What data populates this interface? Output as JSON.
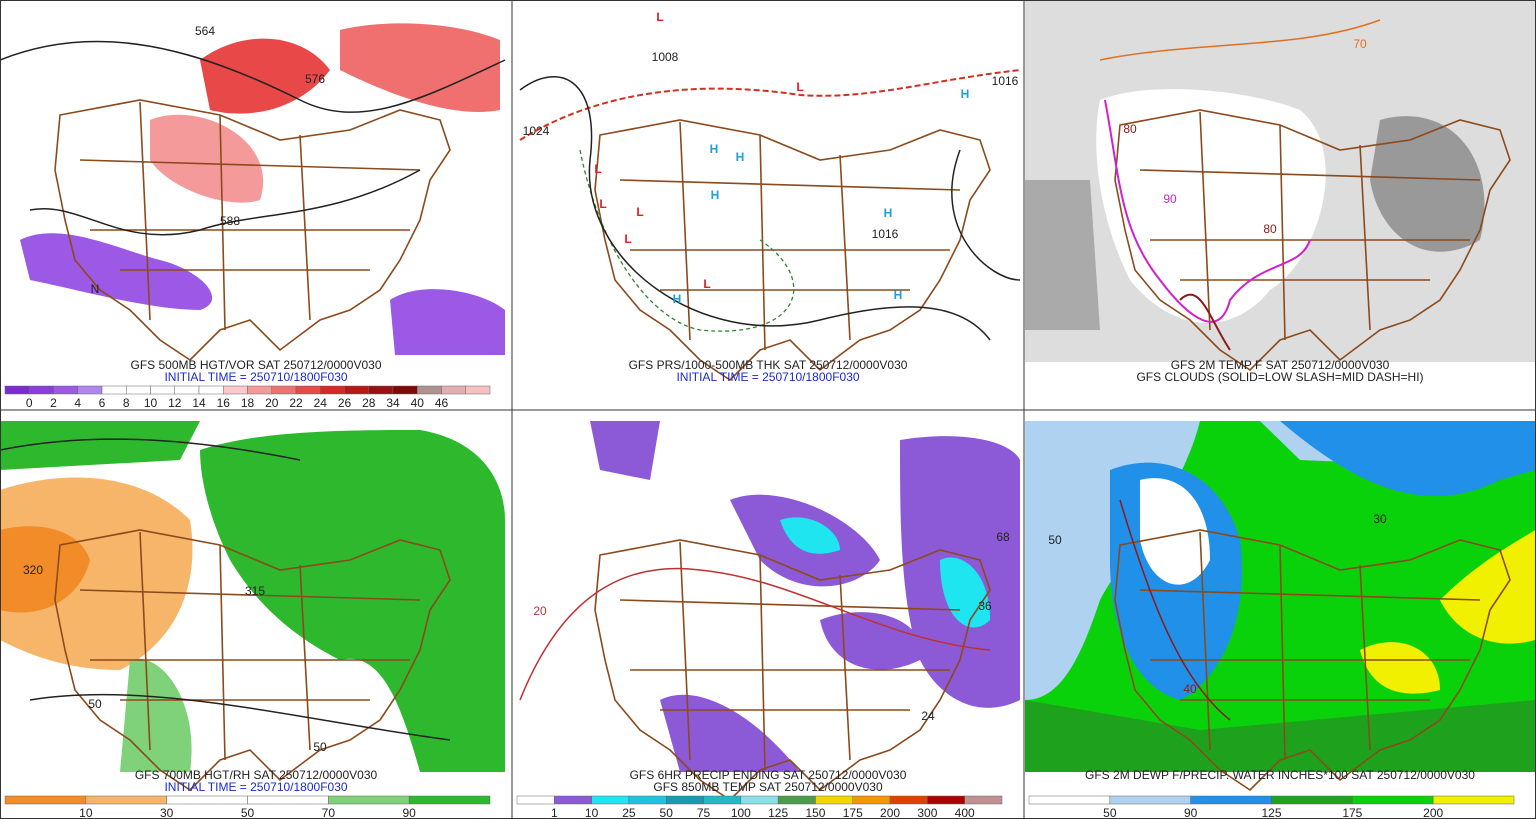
{
  "panels": [
    {
      "caption": [
        "GFS 500MB HGT/VOR SAT 250712/0000V030",
        "INITIAL TIME = 250710/1800F030"
      ],
      "colorbar": {
        "labels": [
          "0",
          "2",
          "4",
          "6",
          "8",
          "10",
          "12",
          "14",
          "16",
          "18",
          "20",
          "22",
          "24",
          "26",
          "28",
          "34",
          "40",
          "46"
        ],
        "colors": [
          "#7a2bd6",
          "#8a3ee0",
          "#9b59e6",
          "#b085ee",
          "#ffffff",
          "#ffffff",
          "#ffffff",
          "#ffffff",
          "#ffffff",
          "#fbc9c9",
          "#f59a9a",
          "#f07070",
          "#e84848",
          "#d92626",
          "#b81818",
          "#9a1010",
          "#800808",
          "#b09090",
          "#e0b0b0",
          "#f5c0c0"
        ]
      },
      "map_labels": [
        {
          "text": "564",
          "color": "#222"
        },
        {
          "text": "576",
          "color": "#222"
        },
        {
          "text": "588",
          "color": "#222"
        },
        {
          "text": "N",
          "color": "#222"
        }
      ]
    },
    {
      "caption": [
        "GFS PRS/1000-500MB THK SAT 250712/0000V030",
        "INITIAL TIME = 250710/1800F030"
      ],
      "map_labels": [
        {
          "text": "L",
          "color": "#e02020"
        },
        {
          "text": "L",
          "color": "#e02020"
        },
        {
          "text": "L",
          "color": "#e02020"
        },
        {
          "text": "L",
          "color": "#e02020"
        },
        {
          "text": "L",
          "color": "#e02020"
        },
        {
          "text": "L",
          "color": "#e02020"
        },
        {
          "text": "L",
          "color": "#e02020"
        },
        {
          "text": "H",
          "color": "#1ea0d8"
        },
        {
          "text": "H",
          "color": "#1ea0d8"
        },
        {
          "text": "H",
          "color": "#1ea0d8"
        },
        {
          "text": "H",
          "color": "#1ea0d8"
        },
        {
          "text": "H",
          "color": "#1ea0d8"
        },
        {
          "text": "H",
          "color": "#1ea0d8"
        },
        {
          "text": "H",
          "color": "#1ea0d8"
        },
        {
          "text": "1008",
          "color": "#222"
        },
        {
          "text": "1016",
          "color": "#222"
        },
        {
          "text": "1024",
          "color": "#222"
        },
        {
          "text": "1016",
          "color": "#222"
        }
      ]
    },
    {
      "caption": [
        "GFS 2M TEMP F SAT 250712/0000V030",
        "GFS CLOUDS (SOLID=LOW SLASH=MID DASH=HI)"
      ],
      "map_labels": [
        {
          "text": "80",
          "color": "#8b1a1a"
        },
        {
          "text": "80",
          "color": "#8b1a1a"
        },
        {
          "text": "70",
          "color": "#e07020"
        },
        {
          "text": "90",
          "color": "#d020d0"
        }
      ]
    },
    {
      "caption": [
        "GFS 700MB HGT/RH SAT 250712/0000V030",
        "INITIAL TIME = 250710/1800F030"
      ],
      "colorbar": {
        "labels": [
          "10",
          "30",
          "50",
          "70",
          "90"
        ],
        "colors": [
          "#f28c28",
          "#f7b56a",
          "#ffffff",
          "#ffffff",
          "#7fd17a",
          "#2eb82e"
        ]
      },
      "map_labels": [
        {
          "text": "320",
          "color": "#222"
        },
        {
          "text": "315",
          "color": "#222"
        },
        {
          "text": "50",
          "color": "#222"
        },
        {
          "text": "50",
          "color": "#222"
        }
      ]
    },
    {
      "caption": [
        "GFS 6HR PRECIP ENDING SAT 250712/0000V030",
        "GFS 850MB TEMP SAT 250712/0000V030"
      ],
      "colorbar": {
        "labels": [
          "1",
          "10",
          "25",
          "50",
          "75",
          "100",
          "125",
          "150",
          "175",
          "200",
          "300",
          "400"
        ],
        "colors": [
          "#ffffff",
          "#8c5ad7",
          "#1ee5f0",
          "#20c4e0",
          "#1a9ab0",
          "#23b8c8",
          "#8be0e8",
          "#4c9c4c",
          "#f2d600",
          "#f29900",
          "#e04000",
          "#aa0000",
          "#c09090"
        ]
      },
      "map_labels": [
        {
          "text": "36",
          "color": "#222"
        },
        {
          "text": "24",
          "color": "#222"
        },
        {
          "text": "20",
          "color": "#c03030"
        },
        {
          "text": "68",
          "color": "#222"
        }
      ]
    },
    {
      "caption": [
        "GFS 2M DEWP F/PRECIP. WATER INCHES*100 SAT 250712/0000V030"
      ],
      "colorbar": {
        "labels": [
          "50",
          "90",
          "125",
          "175",
          "200"
        ],
        "colors": [
          "#ffffff",
          "#aed2f0",
          "#2090e8",
          "#1ea21e",
          "#0ad20a",
          "#f0f000"
        ]
      },
      "map_labels": [
        {
          "text": "50",
          "color": "#222"
        },
        {
          "text": "40",
          "color": "#8b1a1a"
        },
        {
          "text": "30",
          "color": "#222"
        }
      ]
    }
  ]
}
